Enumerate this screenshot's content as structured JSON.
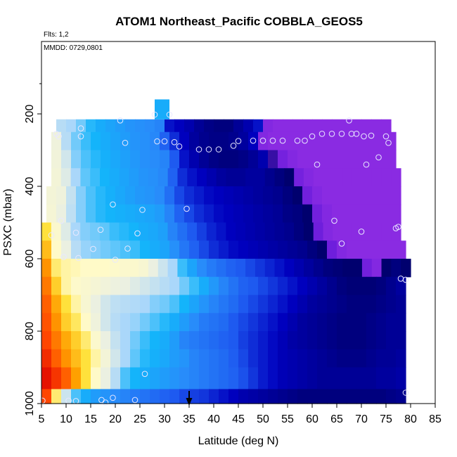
{
  "chart_data": {
    "type": "heatmap",
    "title": "ATOM1 Northeast_Pacific COBBLA_GEOS5",
    "flights_note": "Flts: 1,2",
    "date_note": "MMDD: 0729,0801",
    "xlabel": "Latitude (deg N)",
    "ylabel": "PSXC (mbar)",
    "xlim": [
      5,
      85
    ],
    "ylim": [
      1000,
      0
    ],
    "x_ticks": [
      "5",
      "10",
      "15",
      "20",
      "25",
      "30",
      "35",
      "40",
      "45",
      "50",
      "55",
      "60",
      "65",
      "70",
      "75",
      "80",
      "85"
    ],
    "y_ticks": [
      "200",
      "400",
      "600",
      "800",
      "1000"
    ],
    "grid": false,
    "marker_latitude": 35,
    "layers": [
      {
        "p_top": 215,
        "p_bot": 250,
        "lat_start": 8,
        "lat_end": 76,
        "values": [
          0.52,
          0.5,
          0.47,
          0.43,
          0.4,
          0.38,
          0.36,
          0.34,
          0.33,
          0.32,
          0.3,
          0.12,
          0.1,
          0.08,
          0.05,
          0.03,
          0.02,
          0.02,
          0.05,
          0.08,
          0.12,
          -0.1,
          -0.12,
          -0.12,
          -0.12,
          -0.12,
          -0.12,
          -0.12,
          -0.12,
          -0.12,
          -0.12,
          -0.12,
          -0.12,
          -0.12
        ]
      },
      {
        "p_top": 250,
        "p_bot": 300,
        "lat_start": 7,
        "lat_end": 77,
        "values": [
          0.62,
          0.52,
          0.47,
          0.44,
          0.42,
          0.4,
          0.38,
          0.36,
          0.34,
          0.33,
          0.31,
          0.22,
          0.15,
          0.1,
          0.06,
          0.04,
          0.03,
          0.03,
          0.04,
          0.06,
          0.1,
          -0.1,
          -0.12,
          -0.12,
          -0.12,
          -0.12,
          -0.12,
          -0.12,
          -0.12,
          -0.12,
          -0.12,
          -0.12,
          -0.12,
          -0.12,
          -0.12
        ]
      },
      {
        "p_top": 300,
        "p_bot": 350,
        "lat_start": 7,
        "lat_end": 77,
        "values": [
          0.63,
          0.56,
          0.48,
          0.45,
          0.43,
          0.41,
          0.39,
          0.37,
          0.35,
          0.33,
          0.32,
          0.3,
          0.2,
          0.12,
          0.08,
          0.05,
          0.03,
          0.02,
          0.02,
          0.03,
          0.05,
          0.08,
          -0.02,
          -0.06,
          -0.1,
          -0.12,
          -0.12,
          -0.12,
          -0.12,
          -0.12,
          -0.12,
          -0.12,
          -0.12,
          -0.12,
          -0.12
        ]
      },
      {
        "p_top": 350,
        "p_bot": 400,
        "lat_start": 7,
        "lat_end": 78,
        "values": [
          0.64,
          0.58,
          0.5,
          0.46,
          0.44,
          0.42,
          0.4,
          0.38,
          0.36,
          0.34,
          0.33,
          0.31,
          0.22,
          0.15,
          0.12,
          0.1,
          0.08,
          0.06,
          0.05,
          0.05,
          0.06,
          0.06,
          0.04,
          0.02,
          0.0,
          -0.06,
          -0.1,
          -0.12,
          -0.12,
          -0.12,
          -0.12,
          -0.12,
          -0.12,
          -0.12,
          -0.12,
          -0.12
        ]
      },
      {
        "p_top": 400,
        "p_bot": 450,
        "lat_start": 6,
        "lat_end": 78,
        "values": [
          0.64,
          0.62,
          0.54,
          0.48,
          0.45,
          0.43,
          0.41,
          0.39,
          0.37,
          0.35,
          0.34,
          0.32,
          0.25,
          0.18,
          0.15,
          0.13,
          0.11,
          0.1,
          0.09,
          0.08,
          0.07,
          0.06,
          0.05,
          0.04,
          0.02,
          0.0,
          -0.05,
          -0.1,
          -0.12,
          -0.12,
          -0.12,
          -0.12,
          -0.12,
          -0.12,
          -0.12,
          -0.12
        ]
      },
      {
        "p_top": 450,
        "p_bot": 500,
        "lat_start": 6,
        "lat_end": 78,
        "values": [
          0.65,
          0.6,
          0.53,
          0.48,
          0.45,
          0.43,
          0.42,
          0.41,
          0.4,
          0.39,
          0.38,
          0.36,
          0.3,
          0.22,
          0.18,
          0.15,
          0.13,
          0.11,
          0.1,
          0.09,
          0.08,
          0.07,
          0.06,
          0.05,
          0.03,
          0.02,
          0.0,
          -0.05,
          -0.1,
          -0.12,
          -0.12,
          -0.12,
          -0.12,
          -0.12,
          -0.12,
          -0.12
        ]
      },
      {
        "p_top": 500,
        "p_bot": 550,
        "lat_start": 5,
        "lat_end": 78,
        "values": [
          0.78,
          0.68,
          0.58,
          0.5,
          0.48,
          0.47,
          0.46,
          0.44,
          0.43,
          0.42,
          0.4,
          0.39,
          0.37,
          0.3,
          0.25,
          0.2,
          0.17,
          0.14,
          0.12,
          0.1,
          0.09,
          0.08,
          0.07,
          0.06,
          0.05,
          0.04,
          0.02,
          0.0,
          -0.04,
          -0.1,
          -0.12,
          -0.12,
          -0.12,
          -0.12,
          -0.12,
          -0.12,
          -0.12
        ]
      },
      {
        "p_top": 550,
        "p_bot": 600,
        "lat_start": 5,
        "lat_end": 79,
        "values": [
          0.82,
          0.7,
          0.6,
          0.52,
          0.49,
          0.48,
          0.47,
          0.46,
          0.45,
          0.44,
          0.42,
          0.4,
          0.38,
          0.33,
          0.27,
          0.22,
          0.18,
          0.15,
          0.13,
          0.11,
          0.1,
          0.09,
          0.08,
          0.07,
          0.06,
          0.05,
          0.04,
          0.02,
          0.0,
          -0.04,
          -0.1,
          -0.12,
          -0.12,
          -0.12,
          -0.12,
          -0.12,
          -0.12
        ]
      },
      {
        "p_top": 600,
        "p_bot": 650,
        "lat_start": 5,
        "lat_end": 80,
        "values": [
          0.86,
          0.75,
          0.72,
          0.71,
          0.7,
          0.7,
          0.7,
          0.69,
          0.68,
          0.68,
          0.66,
          0.6,
          0.55,
          0.5,
          0.44,
          0.38,
          0.32,
          0.28,
          0.25,
          0.22,
          0.2,
          0.18,
          0.16,
          0.14,
          0.12,
          0.1,
          0.08,
          0.06,
          0.04,
          0.02,
          0.01,
          0.0,
          0.0,
          -0.05,
          -0.1,
          0.0,
          0.02,
          0.0
        ]
      },
      {
        "p_top": 650,
        "p_bot": 700,
        "lat_start": 5,
        "lat_end": 79,
        "values": [
          0.88,
          0.8,
          0.72,
          0.69,
          0.67,
          0.65,
          0.63,
          0.61,
          0.6,
          0.58,
          0.56,
          0.54,
          0.52,
          0.5,
          0.47,
          0.44,
          0.4,
          0.35,
          0.3,
          0.26,
          0.22,
          0.2,
          0.18,
          0.16,
          0.14,
          0.12,
          0.1,
          0.08,
          0.06,
          0.04,
          0.02,
          0.01,
          0.01,
          0.01,
          0.02,
          0.04,
          0.06
        ]
      },
      {
        "p_top": 700,
        "p_bot": 750,
        "lat_start": 5,
        "lat_end": 79,
        "values": [
          0.9,
          0.84,
          0.78,
          0.72,
          0.66,
          0.6,
          0.56,
          0.53,
          0.52,
          0.51,
          0.5,
          0.48,
          0.47,
          0.45,
          0.42,
          0.38,
          0.34,
          0.3,
          0.27,
          0.24,
          0.2,
          0.18,
          0.16,
          0.14,
          0.12,
          0.1,
          0.08,
          0.06,
          0.05,
          0.04,
          0.03,
          0.02,
          0.02,
          0.02,
          0.03,
          0.04,
          0.05
        ]
      },
      {
        "p_top": 750,
        "p_bot": 800,
        "lat_start": 5,
        "lat_end": 79,
        "values": [
          0.91,
          0.86,
          0.8,
          0.76,
          0.7,
          0.62,
          0.56,
          0.52,
          0.5,
          0.49,
          0.47,
          0.45,
          0.43,
          0.4,
          0.36,
          0.32,
          0.28,
          0.26,
          0.24,
          0.2,
          0.18,
          0.16,
          0.14,
          0.12,
          0.1,
          0.08,
          0.06,
          0.05,
          0.04,
          0.03,
          0.02,
          0.02,
          0.02,
          0.03,
          0.04,
          0.05,
          0.05
        ]
      },
      {
        "p_top": 800,
        "p_bot": 850,
        "lat_start": 5,
        "lat_end": 79,
        "values": [
          0.92,
          0.88,
          0.84,
          0.8,
          0.75,
          0.68,
          0.6,
          0.54,
          0.5,
          0.47,
          0.44,
          0.42,
          0.4,
          0.36,
          0.3,
          0.28,
          0.26,
          0.24,
          0.22,
          0.2,
          0.17,
          0.15,
          0.13,
          0.11,
          0.09,
          0.07,
          0.06,
          0.05,
          0.04,
          0.03,
          0.02,
          0.02,
          0.02,
          0.03,
          0.04,
          0.05,
          0.05
        ]
      },
      {
        "p_top": 850,
        "p_bot": 900,
        "lat_start": 5,
        "lat_end": 79,
        "values": [
          0.95,
          0.9,
          0.86,
          0.82,
          0.78,
          0.72,
          0.64,
          0.56,
          0.5,
          0.46,
          0.43,
          0.41,
          0.39,
          0.36,
          0.34,
          0.3,
          0.28,
          0.26,
          0.24,
          0.21,
          0.18,
          0.15,
          0.13,
          0.11,
          0.09,
          0.08,
          0.07,
          0.06,
          0.05,
          0.04,
          0.03,
          0.03,
          0.03,
          0.04,
          0.05,
          0.05,
          0.06
        ]
      },
      {
        "p_top": 900,
        "p_bot": 960,
        "lat_start": 5,
        "lat_end": 79,
        "values": [
          0.98,
          0.94,
          0.9,
          0.85,
          0.78,
          0.7,
          0.6,
          0.52,
          0.45,
          0.42,
          0.4,
          0.38,
          0.36,
          0.34,
          0.32,
          0.3,
          0.28,
          0.26,
          0.24,
          0.22,
          0.19,
          0.16,
          0.13,
          0.11,
          0.09,
          0.08,
          0.07,
          0.06,
          0.05,
          0.05,
          0.05,
          0.05,
          0.05,
          0.05,
          0.06,
          0.06,
          0.07
        ]
      },
      {
        "p_top": 960,
        "p_bot": 1010,
        "lat_start": 5,
        "lat_end": 79,
        "values": [
          0.92,
          0.75,
          0.55,
          0.45,
          0.4,
          0.36,
          0.34,
          0.32,
          0.3,
          0.28,
          0.26,
          0.24,
          0.22,
          0.2,
          0.18,
          0.17,
          0.16,
          0.14,
          0.12,
          0.1,
          0.08,
          0.07,
          0.06,
          0.05,
          0.04,
          0.03,
          0.02,
          0.02,
          0.02,
          0.02,
          0.02,
          0.02,
          0.02,
          0.02,
          0.02,
          0.03,
          0.04
        ]
      }
    ],
    "extra_cells": [
      {
        "lat_start": 28,
        "lat_end": 31,
        "p_top": 160,
        "p_bot": 215,
        "value": 0.4
      }
    ],
    "observations": [
      [
        5.2,
        992
      ],
      [
        10.5,
        992
      ],
      [
        12,
        993
      ],
      [
        17.2,
        990
      ],
      [
        18,
        997
      ],
      [
        19.5,
        984
      ],
      [
        24,
        990
      ],
      [
        26,
        918
      ],
      [
        8,
        255
      ],
      [
        8.5,
        262
      ],
      [
        13,
        240
      ],
      [
        13,
        262
      ],
      [
        21,
        218
      ],
      [
        22,
        280
      ],
      [
        28,
        202
      ],
      [
        28.5,
        276
      ],
      [
        30,
        276
      ],
      [
        31,
        202
      ],
      [
        32,
        278
      ],
      [
        33,
        290
      ],
      [
        37,
        298
      ],
      [
        39,
        298
      ],
      [
        41,
        298
      ],
      [
        44,
        288
      ],
      [
        45,
        275
      ],
      [
        48,
        274
      ],
      [
        50,
        274
      ],
      [
        52,
        274
      ],
      [
        54,
        274
      ],
      [
        57,
        274
      ],
      [
        58.5,
        274
      ],
      [
        60,
        262
      ],
      [
        62,
        255
      ],
      [
        64,
        255
      ],
      [
        66,
        255
      ],
      [
        67.5,
        218
      ],
      [
        68,
        255
      ],
      [
        69,
        255
      ],
      [
        70.5,
        262
      ],
      [
        71,
        340
      ],
      [
        72,
        260
      ],
      [
        73.5,
        320
      ],
      [
        75,
        262
      ],
      [
        75.5,
        280
      ],
      [
        61,
        340
      ],
      [
        64.5,
        495
      ],
      [
        66,
        558
      ],
      [
        70,
        525
      ],
      [
        77,
        516
      ],
      [
        77.5,
        512
      ],
      [
        78,
        655
      ],
      [
        79,
        658
      ],
      [
        79,
        970
      ],
      [
        7,
        535
      ],
      [
        9,
        495
      ],
      [
        9.5,
        595
      ],
      [
        12,
        528
      ],
      [
        12.5,
        598
      ],
      [
        15.5,
        573
      ],
      [
        17,
        520
      ],
      [
        19.5,
        450
      ],
      [
        20,
        603
      ],
      [
        22.5,
        572
      ],
      [
        24.5,
        530
      ],
      [
        25.5,
        465
      ],
      [
        34.5,
        462
      ]
    ]
  }
}
